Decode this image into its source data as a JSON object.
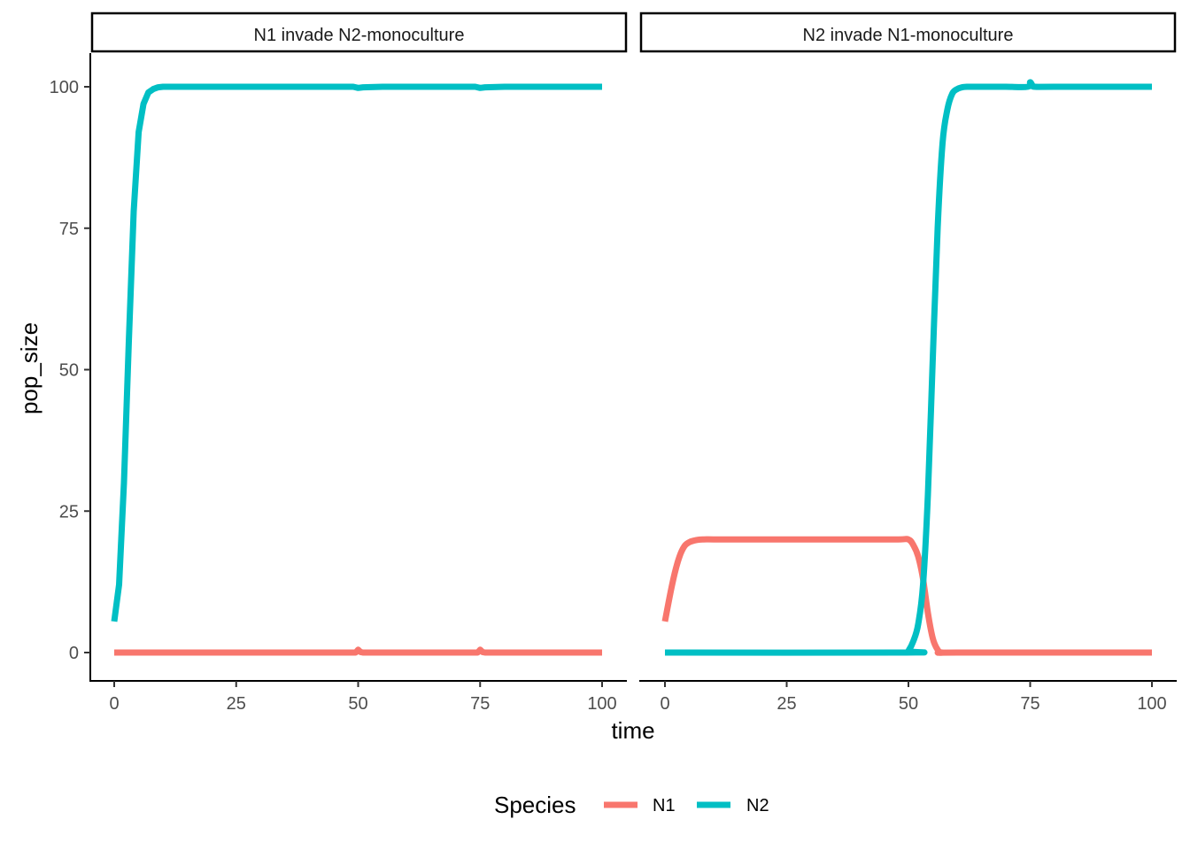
{
  "chart_data": {
    "type": "line",
    "x_label": "time",
    "y_label": "pop_size",
    "xlim": [
      0,
      100
    ],
    "ylim": [
      -5,
      106
    ],
    "x_ticks": [
      "0",
      "25",
      "50",
      "75",
      "100"
    ],
    "y_ticks": [
      "0",
      "25",
      "50",
      "75",
      "100"
    ],
    "grid": false,
    "legend": {
      "title": "Species",
      "position": "bottom",
      "entries": [
        {
          "name": "N1",
          "color": "#F8766D"
        },
        {
          "name": "N2",
          "color": "#00BFC4"
        }
      ]
    },
    "panels": [
      {
        "title": "N1 invade N2-monoculture",
        "series": [
          {
            "name": "N1",
            "color": "#F8766D",
            "x": [
              0,
              49.5,
              50,
              50.5,
              51,
              74.5,
              75,
              75.5,
              76,
              100
            ],
            "y": [
              0,
              0,
              0.5,
              0.1,
              0,
              0,
              0.5,
              0.1,
              0,
              0
            ]
          },
          {
            "name": "N2",
            "color": "#00BFC4",
            "x": [
              0,
              1,
              2,
              3,
              4,
              5,
              6,
              7,
              8,
              9,
              10,
              12,
              15,
              20,
              30,
              49,
              50,
              51,
              55,
              74,
              75,
              76,
              80,
              100
            ],
            "y": [
              5.5,
              12,
              30,
              55,
              78,
              92,
              97,
              99,
              99.6,
              99.9,
              100,
              100,
              100,
              100,
              100,
              100,
              99.8,
              99.9,
              100,
              100,
              99.8,
              99.9,
              100,
              100
            ]
          }
        ]
      },
      {
        "title": "N2 invade N1-monoculture",
        "series": [
          {
            "name": "N1",
            "color": "#F8766D",
            "x": [
              0,
              1,
              2,
              3,
              4,
              5,
              6,
              7,
              8,
              10,
              15,
              20,
              30,
              40,
              48,
              50,
              51,
              52,
              53,
              54,
              55,
              56,
              57,
              60,
              100
            ],
            "y": [
              5.5,
              10,
              14,
              17,
              18.8,
              19.5,
              19.8,
              19.95,
              20,
              20,
              20,
              20,
              20,
              20,
              20,
              20,
              19,
              17,
              13,
              7,
              2.5,
              0.5,
              0,
              0,
              0
            ],
            "smooth": true
          },
          {
            "name": "N2",
            "color": "#00BFC4",
            "x": [
              0,
              49.5,
              50,
              51,
              52,
              53,
              54,
              55,
              56,
              57,
              58,
              59,
              60,
              61,
              62,
              65,
              70,
              74.5,
              75,
              75.5,
              76,
              80,
              100
            ],
            "y": [
              0,
              0,
              0.3,
              2,
              5,
              12,
              28,
              52,
              75,
              90,
              96,
              98.8,
              99.6,
              99.9,
              100,
              100,
              100,
              100,
              100.8,
              100.2,
              100,
              100,
              100
            ],
            "smooth": true
          }
        ]
      }
    ]
  }
}
